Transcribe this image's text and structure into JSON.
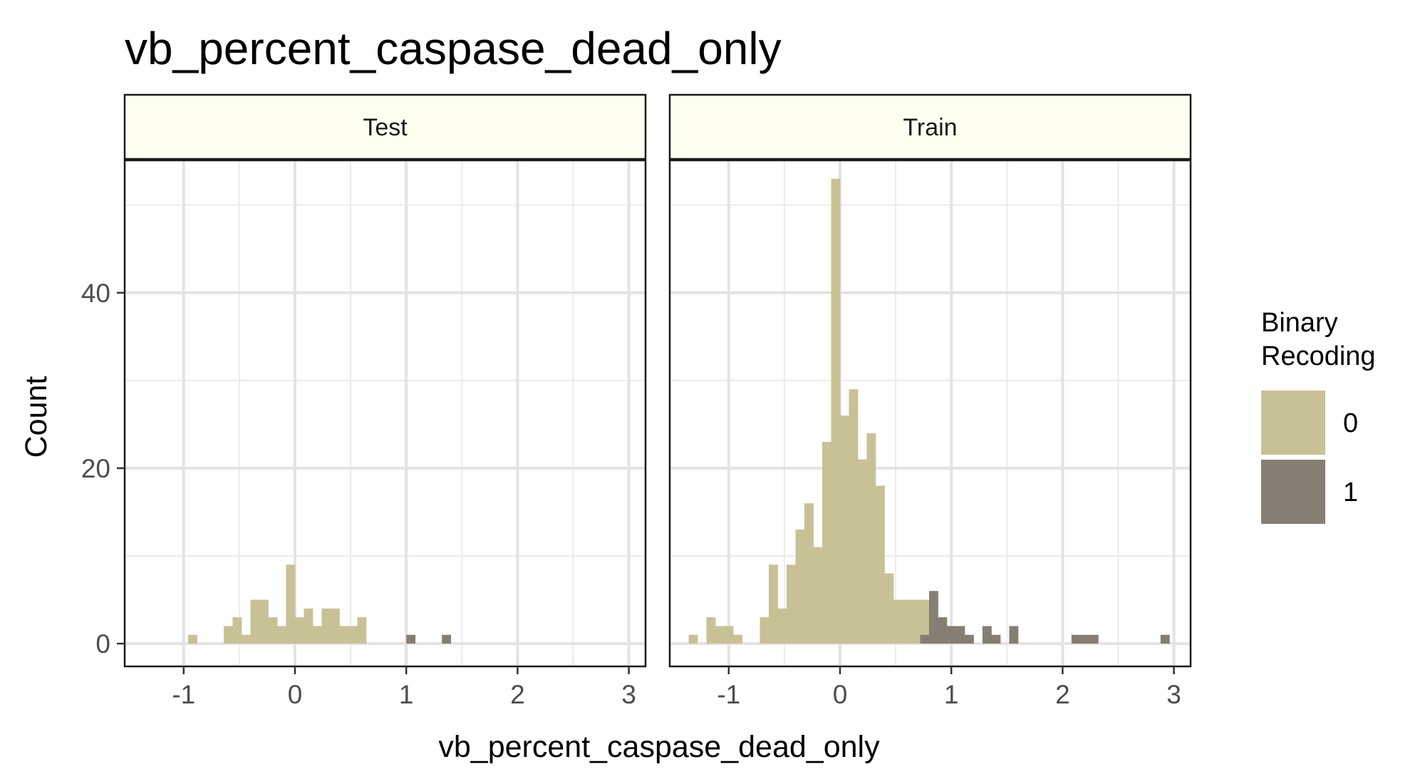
{
  "chart_data": {
    "type": "bar",
    "title": "vb_percent_caspase_dead_only",
    "xlabel": "vb_percent_caspase_dead_only",
    "ylabel": "Count",
    "xlim": [
      -1.53,
      3.15
    ],
    "ylim": [
      -2.6,
      55.1
    ],
    "x_ticks": [
      -1,
      0,
      1,
      2,
      3
    ],
    "y_ticks": [
      0,
      20,
      40
    ],
    "x_tick_labels": [
      "-1",
      "0",
      "1",
      "2",
      "3"
    ],
    "y_tick_labels": [
      "0",
      "20",
      "40"
    ],
    "bin_width": 0.08,
    "grid": true,
    "legend": {
      "title_lines": [
        "Binary",
        "Recoding"
      ],
      "placement": "right",
      "entries": [
        {
          "label": "0",
          "color": "#c8c196"
        },
        {
          "label": "1",
          "color": "#857e72"
        }
      ]
    },
    "panels": [
      {
        "name": "Test",
        "series": [
          {
            "name": "0",
            "color": "#c8c196",
            "bins": [
              [
                -0.96,
                1
              ],
              [
                -0.64,
                2
              ],
              [
                -0.56,
                3
              ],
              [
                -0.48,
                1
              ],
              [
                -0.4,
                5
              ],
              [
                -0.32,
                5
              ],
              [
                -0.24,
                3
              ],
              [
                -0.16,
                2
              ],
              [
                -0.08,
                9
              ],
              [
                0.0,
                3
              ],
              [
                0.08,
                4
              ],
              [
                0.16,
                2
              ],
              [
                0.24,
                4
              ],
              [
                0.32,
                4
              ],
              [
                0.4,
                2
              ],
              [
                0.48,
                2
              ],
              [
                0.56,
                3
              ]
            ]
          },
          {
            "name": "1",
            "color": "#857e72",
            "bins": [
              [
                1.0,
                1
              ],
              [
                1.32,
                1
              ]
            ]
          }
        ]
      },
      {
        "name": "Train",
        "series": [
          {
            "name": "0",
            "color": "#c8c196",
            "bins": [
              [
                -1.36,
                1
              ],
              [
                -1.2,
                3
              ],
              [
                -1.12,
                2
              ],
              [
                -1.04,
                2
              ],
              [
                -0.96,
                1
              ],
              [
                -0.72,
                3
              ],
              [
                -0.64,
                9
              ],
              [
                -0.56,
                4
              ],
              [
                -0.48,
                9
              ],
              [
                -0.4,
                13
              ],
              [
                -0.32,
                16
              ],
              [
                -0.24,
                11
              ],
              [
                -0.16,
                23
              ],
              [
                -0.08,
                53
              ],
              [
                0.0,
                26
              ],
              [
                0.08,
                29
              ],
              [
                0.16,
                21
              ],
              [
                0.24,
                24
              ],
              [
                0.32,
                18
              ],
              [
                0.4,
                8
              ],
              [
                0.48,
                5
              ],
              [
                0.56,
                5
              ],
              [
                0.64,
                5
              ],
              [
                0.72,
                5
              ]
            ]
          },
          {
            "name": "1",
            "color": "#857e72",
            "bins": [
              [
                0.72,
                1
              ],
              [
                0.8,
                6
              ],
              [
                0.88,
                3
              ],
              [
                0.96,
                2
              ],
              [
                1.04,
                2
              ],
              [
                1.12,
                1
              ],
              [
                1.28,
                2
              ],
              [
                1.36,
                1
              ],
              [
                1.52,
                2
              ],
              [
                2.08,
                1
              ],
              [
                2.16,
                1
              ],
              [
                2.24,
                1
              ],
              [
                2.88,
                1
              ]
            ]
          }
        ]
      }
    ]
  }
}
